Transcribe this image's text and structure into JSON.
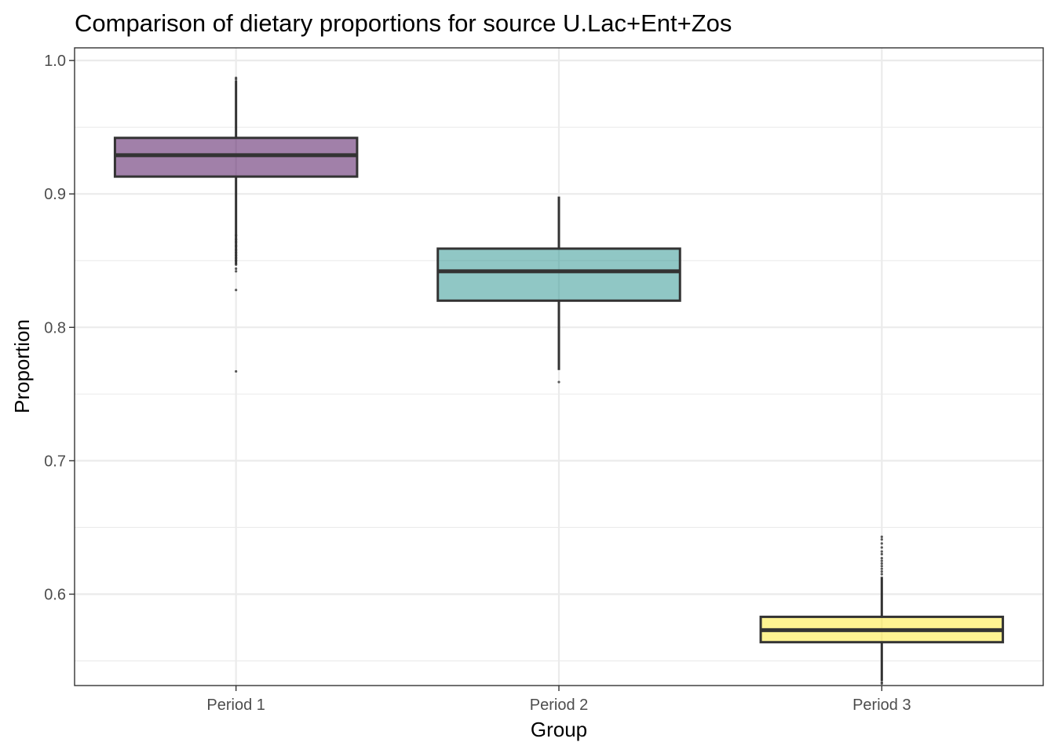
{
  "chart_data": {
    "type": "box",
    "title": "Comparison of dietary proportions for source U.Lac+Ent+Zos",
    "xlabel": "Group",
    "ylabel": "Proportion",
    "ylim": [
      0.5315,
      1.0095
    ],
    "yticks": [
      "0.6",
      "0.7",
      "0.8",
      "0.9",
      "1.0"
    ],
    "ytick_values": [
      0.6,
      0.7,
      0.8,
      0.9,
      1.0
    ],
    "grid": true,
    "categories": [
      "Period 1",
      "Period 2",
      "Period 3"
    ],
    "boxes": [
      {
        "group": "Period 1",
        "color": "#440154",
        "whisker_low": 0.847,
        "q1": 0.913,
        "median": 0.929,
        "q3": 0.942,
        "whisker_high": 0.985,
        "outliers": [
          0.986,
          0.987,
          0.869,
          0.866,
          0.864,
          0.861,
          0.858,
          0.856,
          0.854,
          0.852,
          0.85,
          0.847,
          0.844,
          0.842,
          0.828,
          0.767
        ]
      },
      {
        "group": "Period 2",
        "color": "#21908C",
        "whisker_low": 0.768,
        "q1": 0.82,
        "median": 0.842,
        "q3": 0.859,
        "whisker_high": 0.898,
        "outliers": [
          0.759
        ]
      },
      {
        "group": "Period 3",
        "color": "#FDE725",
        "whisker_low": 0.535,
        "q1": 0.564,
        "median": 0.573,
        "q3": 0.583,
        "whisker_high": 0.613,
        "outliers": [
          0.643,
          0.641,
          0.638,
          0.635,
          0.632,
          0.63,
          0.627,
          0.625,
          0.623,
          0.621,
          0.619,
          0.617,
          0.615,
          0.534,
          0.533
        ]
      }
    ]
  }
}
